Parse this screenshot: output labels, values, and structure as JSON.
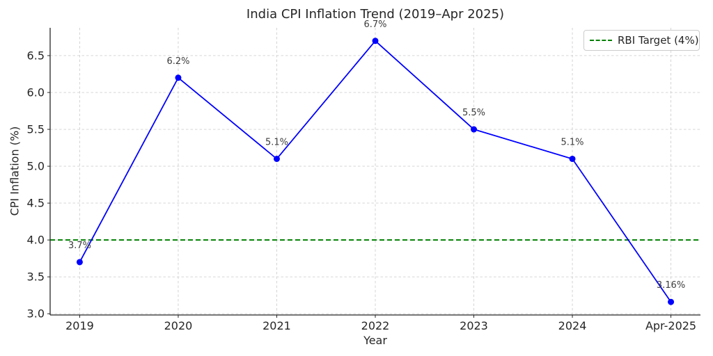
{
  "chart_data": {
    "type": "line",
    "title": "India CPI Inflation Trend (2019–Apr 2025)",
    "xlabel": "Year",
    "ylabel": "CPI Inflation (%)",
    "categories": [
      "2019",
      "2020",
      "2021",
      "2022",
      "2023",
      "2024",
      "Apr-2025"
    ],
    "series": [
      {
        "name": "CPI Inflation",
        "values": [
          3.7,
          6.2,
          5.1,
          6.7,
          5.5,
          5.1,
          3.16
        ],
        "point_labels": [
          "3.7%",
          "6.2%",
          "5.1%",
          "6.7%",
          "5.5%",
          "5.1%",
          "3.16%"
        ],
        "color": "#0000ff",
        "marker": "circle"
      }
    ],
    "reference_line": {
      "value": 4.0,
      "label": "RBI Target (4%)",
      "color": "#008000",
      "style": "dashed"
    },
    "yticks": [
      3.0,
      3.5,
      4.0,
      4.5,
      5.0,
      5.5,
      6.0,
      6.5
    ],
    "ylim": [
      2.983,
      6.877
    ],
    "xlim_padding": 0.3,
    "grid": true,
    "legend_position": "upper right",
    "colors": {
      "grid": "#d0d0d0",
      "axis": "#262626",
      "tick_label": "#262626",
      "annotation": "#3d3d3d",
      "legend_border": "#cccccc",
      "background": "#ffffff"
    }
  }
}
